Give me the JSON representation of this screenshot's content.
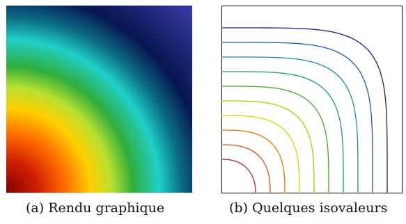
{
  "captions": {
    "a": "(a) Rendu graphique",
    "b": "(b) Quelques isovaleurs"
  },
  "colormap": [
    "#7f0000",
    "#ff2a00",
    "#ff7f00",
    "#ffd400",
    "#d4ff2a",
    "#29c24f",
    "#17c3b2",
    "#0a7f8f",
    "#061a4f",
    "#3c3ca6"
  ],
  "isovalue_colors": [
    "#a52a2a",
    "#d2511a",
    "#e07a00",
    "#d7d400",
    "#9bd100",
    "#4aa52a",
    "#1e9a6e",
    "#1a8aa8",
    "#1f56b0",
    "#1c1c8c"
  ]
}
